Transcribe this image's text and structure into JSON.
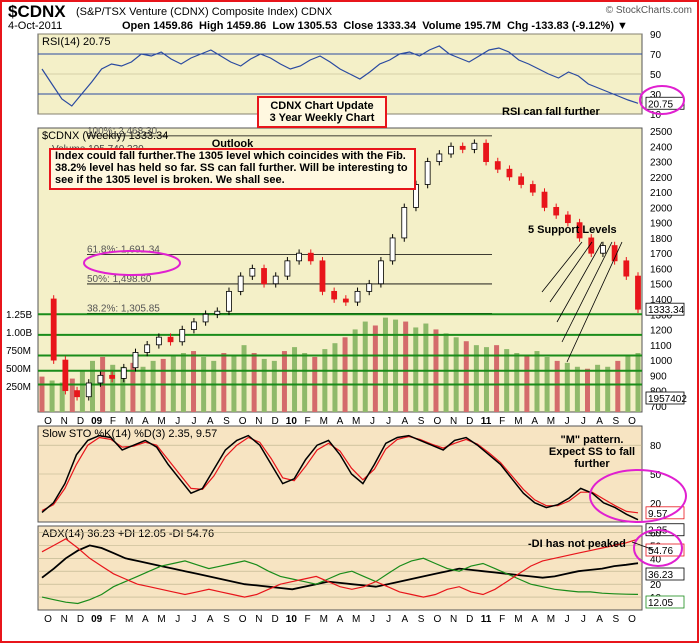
{
  "header": {
    "symbol": "$CDNX",
    "name": "(S&P/TSX Venture (CDNX) Composite Index)  CDNX",
    "date": "4-Oct-2011",
    "ohlc": "Open 1459.86  High 1459.86  Low 1305.53  Close 1333.34  Volume 195.7M  Chg -133.83 (-9.12%) ▼",
    "copyright": "© StockCharts.com"
  },
  "annotations": {
    "title_line1": "CDNX Chart Update",
    "title_line2": "3 Year Weekly Chart",
    "rsi_note": "RSI can fall further",
    "outlook_head": "Outlook",
    "outlook_body": "Index could fall further.The 1305 level which coincides with the Fib. 38.2% level has held so far. SS can fall further. Will be interesting to see if the 1305 level is broken. We shall see.",
    "support_note": "5 Support Levels",
    "sto_note": "\"M\" pattern. Expect SS to fall further",
    "adx_note": "-DI has not peaked"
  },
  "colors": {
    "up": "#000000",
    "down": "#e8151b",
    "rsi_fill": "#5aa9c7",
    "support": "#1a8c1a",
    "frame": "#e8151b",
    "vol_green": "#8fb96a",
    "vol_red": "#d46b6b",
    "highlight": "#e020d0"
  },
  "chart_data": [
    {
      "type": "line",
      "title": "RSI(14) 20.75",
      "ylim": [
        10,
        90
      ],
      "yticks": [
        "90",
        "70",
        "50",
        "30",
        "10"
      ],
      "values": [
        55,
        40,
        25,
        18,
        30,
        42,
        55,
        60,
        58,
        62,
        70,
        68,
        72,
        65,
        60,
        66,
        70,
        74,
        68,
        62,
        58,
        65,
        70,
        66,
        60,
        55,
        58,
        64,
        68,
        62,
        55,
        50,
        45,
        52,
        60,
        64,
        70,
        72,
        68,
        74,
        78,
        70,
        66,
        62,
        68,
        74,
        76,
        72,
        64,
        60,
        55,
        50,
        46,
        52,
        48,
        40,
        36,
        32,
        28,
        24,
        20.75
      ],
      "last_label": "20.75"
    },
    {
      "type": "line",
      "title": "$CDNX (Weekly) 1333.34",
      "subtitle": "Volume 195,740,330",
      "ylim": [
        660,
        2520
      ],
      "yticks": [
        "2500",
        "2400",
        "2300",
        "2200",
        "2100",
        "2000",
        "1900",
        "1800",
        "1700",
        "1600",
        "1500",
        "1400",
        "1300",
        "1200",
        "1100",
        "1000",
        "900",
        "800",
        "700"
      ],
      "x_labels": [
        "O",
        "N",
        "D",
        "09",
        "F",
        "M",
        "A",
        "M",
        "J",
        "J",
        "A",
        "S",
        "O",
        "N",
        "D",
        "10",
        "F",
        "M",
        "A",
        "M",
        "J",
        "J",
        "A",
        "S",
        "O",
        "N",
        "D",
        "11",
        "F",
        "M",
        "A",
        "M",
        "J",
        "J",
        "A",
        "S",
        "O"
      ],
      "close": [
        1400,
        1000,
        800,
        760,
        850,
        900,
        880,
        950,
        1050,
        1100,
        1150,
        1120,
        1200,
        1250,
        1300,
        1320,
        1450,
        1550,
        1600,
        1500,
        1550,
        1650,
        1700,
        1650,
        1450,
        1400,
        1380,
        1450,
        1500,
        1650,
        1800,
        2000,
        2150,
        2300,
        2350,
        2400,
        2380,
        2420,
        2300,
        2250,
        2200,
        2150,
        2100,
        2000,
        1950,
        1900,
        1800,
        1700,
        1750,
        1650,
        1550,
        1333.34
      ],
      "fib_levels": [
        {
          "label": "61.8%: 1,691.34",
          "value": 1691.34
        },
        {
          "label": "50%: 1,498.60",
          "value": 1498.6
        },
        {
          "label": "38.2%: 1,305.85",
          "value": 1305.85
        }
      ],
      "fib_top": {
        "label": "100%: 2,468.30",
        "value": 2468.3
      },
      "support_levels": [
        1300,
        1165,
        1030,
        930,
        840
      ],
      "last_label": "1333.34",
      "volume_axis": [
        "1.25B",
        "1.00B",
        "750M",
        "500M",
        "250M"
      ],
      "volume_last": "1957402",
      "volume_values": [
        180,
        160,
        150,
        170,
        210,
        260,
        280,
        240,
        230,
        250,
        230,
        260,
        270,
        290,
        300,
        310,
        280,
        260,
        300,
        290,
        340,
        300,
        270,
        260,
        310,
        330,
        300,
        280,
        320,
        350,
        380,
        420,
        460,
        440,
        480,
        470,
        460,
        430,
        450,
        420,
        400,
        380,
        360,
        340,
        330,
        340,
        320,
        300,
        290,
        310,
        280,
        260,
        250,
        230,
        220,
        240,
        230,
        260,
        290,
        300
      ]
    },
    {
      "type": "line",
      "title": "Slow STO %K(14) %D(3) 2.35, 9.57",
      "ylim": [
        0,
        100
      ],
      "yticks": [
        "80",
        "50",
        "20"
      ],
      "k_values": [
        10,
        20,
        40,
        70,
        85,
        90,
        88,
        75,
        80,
        85,
        78,
        60,
        45,
        30,
        35,
        55,
        75,
        85,
        90,
        80,
        60,
        40,
        45,
        65,
        80,
        85,
        70,
        50,
        40,
        60,
        82,
        88,
        90,
        85,
        80,
        75,
        85,
        88,
        80,
        70,
        60,
        45,
        30,
        20,
        15,
        18,
        25,
        35,
        30,
        20,
        15,
        8,
        2.35
      ],
      "d_values": [
        12,
        18,
        35,
        60,
        80,
        88,
        86,
        78,
        79,
        83,
        80,
        65,
        50,
        35,
        34,
        48,
        68,
        80,
        88,
        83,
        66,
        46,
        43,
        58,
        75,
        82,
        74,
        56,
        44,
        55,
        76,
        86,
        89,
        86,
        81,
        77,
        82,
        86,
        81,
        72,
        62,
        48,
        34,
        23,
        17,
        17,
        22,
        31,
        31,
        24,
        17,
        11,
        9.57
      ],
      "last_labels": [
        "9.57",
        "2.35"
      ]
    },
    {
      "type": "line",
      "title": "ADX(14) 36.23 +DI 12.05 -DI 54.76",
      "ylim": [
        0,
        65
      ],
      "yticks": [
        "60",
        "50",
        "40",
        "30",
        "20",
        "10"
      ],
      "series": [
        {
          "name": "ADX(14) 36.23",
          "color": "#000000",
          "values": [
            25,
            32,
            40,
            46,
            50,
            48,
            44,
            40,
            38,
            36,
            34,
            32,
            30,
            28,
            26,
            24,
            22,
            20,
            19,
            18,
            17,
            16,
            18,
            20,
            22,
            21,
            20,
            19,
            18,
            20,
            22,
            24,
            26,
            28,
            30,
            32,
            31,
            30,
            29,
            28,
            27,
            26,
            25,
            26,
            28,
            30,
            31,
            32,
            34,
            35,
            36.23
          ]
        },
        {
          "name": "+DI 12.05",
          "color": "#1a8c1a",
          "values": [
            10,
            8,
            6,
            5,
            8,
            12,
            18,
            22,
            26,
            30,
            34,
            36,
            38,
            35,
            32,
            34,
            36,
            38,
            35,
            30,
            26,
            24,
            22,
            20,
            24,
            28,
            30,
            26,
            22,
            28,
            34,
            38,
            40,
            36,
            32,
            30,
            34,
            36,
            32,
            28,
            24,
            20,
            18,
            16,
            15,
            14,
            14,
            13,
            12.5,
            12.2,
            12.05
          ]
        },
        {
          "name": "-DI 54.76",
          "color": "#e8151b",
          "values": [
            45,
            50,
            55,
            48,
            40,
            34,
            28,
            24,
            20,
            18,
            16,
            14,
            12,
            14,
            16,
            14,
            12,
            10,
            12,
            16,
            20,
            22,
            24,
            26,
            22,
            18,
            16,
            18,
            22,
            18,
            14,
            12,
            10,
            12,
            16,
            18,
            14,
            12,
            16,
            22,
            28,
            34,
            38,
            40,
            42,
            44,
            46,
            48,
            50,
            52,
            54.76
          ]
        }
      ],
      "last_labels": [
        "54.76",
        "36.23",
        "12.05"
      ]
    }
  ]
}
